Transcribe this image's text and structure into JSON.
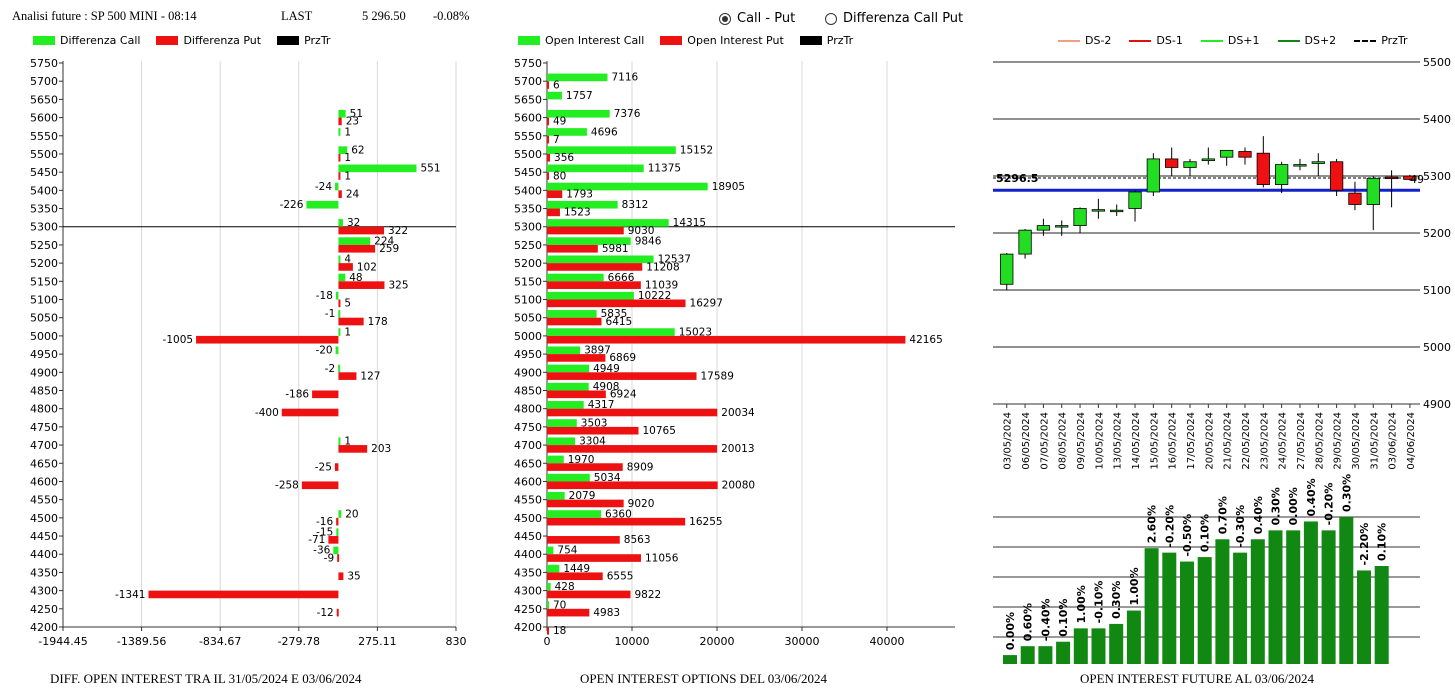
{
  "header": {
    "title": "Analisi future : SP 500 MINI - 08:14",
    "last_label": "LAST",
    "last_value": "5 296.50",
    "change": "-0.08%"
  },
  "options": {
    "radio1": "Call - Put",
    "radio2": "Differenza Call Put",
    "selected": "radio1"
  },
  "legends": {
    "left": [
      {
        "label": "Differenza Call",
        "color": "#22ee22"
      },
      {
        "label": "Differenza Put",
        "color": "#ee1111"
      },
      {
        "label": "PrzTr",
        "color": "#000000"
      }
    ],
    "middle": [
      {
        "label": "Open Interest Call",
        "color": "#22ee22"
      },
      {
        "label": "Open Interest Put",
        "color": "#ee1111"
      },
      {
        "label": "PrzTr",
        "color": "#000000"
      }
    ],
    "right": [
      {
        "label": "DS-2",
        "color": "#f0a080",
        "style": "solid"
      },
      {
        "label": "DS-1",
        "color": "#dd1111",
        "style": "solid"
      },
      {
        "label": "DS+1",
        "color": "#22ee22",
        "style": "solid"
      },
      {
        "label": "DS+2",
        "color": "#118811",
        "style": "solid"
      },
      {
        "label": "PrzTr",
        "color": "#000000",
        "style": "dashed"
      }
    ]
  },
  "captions": {
    "left": "DIFF. OPEN INTEREST TRA IL 31/05/2024 E 03/06/2024",
    "middle": "OPEN INTEREST OPTIONS DEL 03/06/2024",
    "right": "OPEN INTEREST FUTURE AL 03/06/2024"
  },
  "chart_data": [
    {
      "type": "bar",
      "orientation": "horizontal",
      "strikes": [
        5750,
        5700,
        5650,
        5600,
        5550,
        5500,
        5450,
        5400,
        5350,
        5300,
        5250,
        5200,
        5150,
        5100,
        5050,
        5000,
        4950,
        4900,
        4850,
        4800,
        4750,
        4700,
        4650,
        4600,
        4550,
        4500,
        4450,
        4400,
        4350,
        4300,
        4250,
        4200
      ],
      "series": [
        {
          "name": "Differenza Call",
          "color": "#22ee22",
          "values": [
            null,
            null,
            null,
            51,
            1,
            62,
            551,
            -24,
            -226,
            32,
            224,
            4,
            48,
            -18,
            -1,
            1,
            -20,
            -2,
            null,
            null,
            null,
            1,
            null,
            null,
            null,
            20,
            -15,
            -36,
            null,
            null,
            null,
            null
          ]
        },
        {
          "name": "Differenza Put",
          "color": "#ee1111",
          "values": [
            null,
            null,
            null,
            23,
            null,
            1,
            1,
            24,
            null,
            322,
            259,
            102,
            325,
            5,
            178,
            -1005,
            null,
            127,
            -186,
            -400,
            null,
            203,
            -25,
            -258,
            null,
            -16,
            -71,
            -9,
            35,
            -1341,
            -12,
            null
          ]
        }
      ],
      "x_ticks": [
        "-1944.45",
        "-1389.56",
        "-834.67",
        "-279.78",
        "275.11",
        "830"
      ],
      "xlim": [
        -1944.45,
        830
      ],
      "price_line": 5300
    },
    {
      "type": "bar",
      "orientation": "horizontal",
      "strikes": [
        5750,
        5700,
        5650,
        5600,
        5550,
        5500,
        5450,
        5400,
        5350,
        5300,
        5250,
        5200,
        5150,
        5100,
        5050,
        5000,
        4950,
        4900,
        4850,
        4800,
        4750,
        4700,
        4650,
        4600,
        4550,
        4500,
        4450,
        4400,
        4350,
        4300,
        4250,
        4200
      ],
      "series": [
        {
          "name": "Open Interest Call",
          "color": "#22ee22",
          "values": [
            null,
            7116,
            1757,
            7376,
            4696,
            15152,
            11375,
            18905,
            8312,
            14315,
            9846,
            12537,
            6666,
            10222,
            5835,
            15023,
            3897,
            4949,
            4908,
            4317,
            3503,
            3304,
            1970,
            5034,
            2079,
            6360,
            null,
            754,
            1449,
            428,
            70,
            null
          ]
        },
        {
          "name": "Open Interest Put",
          "color": "#ee1111",
          "values": [
            null,
            6,
            null,
            49,
            7,
            356,
            80,
            1793,
            1523,
            9030,
            5981,
            11208,
            11039,
            16297,
            6415,
            42165,
            6869,
            17589,
            6924,
            20034,
            10765,
            20013,
            8909,
            20080,
            9020,
            16255,
            8563,
            11056,
            6555,
            9822,
            4983,
            18
          ]
        }
      ],
      "x_ticks": [
        "0",
        "10000",
        "20000",
        "30000",
        "40000"
      ],
      "xlim": [
        0,
        48000
      ],
      "price_line": 5300
    },
    {
      "type": "candlestick",
      "dates": [
        "03/05/2024",
        "06/05/2024",
        "07/05/2024",
        "08/05/2024",
        "09/05/2024",
        "10/05/2024",
        "13/05/2024",
        "14/05/2024",
        "15/05/2024",
        "16/05/2024",
        "17/05/2024",
        "20/05/2024",
        "21/05/2024",
        "22/05/2024",
        "23/05/2024",
        "24/05/2024",
        "27/05/2024",
        "28/05/2024",
        "29/05/2024",
        "30/05/2024",
        "31/05/2024",
        "03/06/2024",
        "04/06/2024"
      ],
      "ohlc": [
        [
          5110,
          5165,
          5100,
          5163
        ],
        [
          5163,
          5207,
          5155,
          5205
        ],
        [
          5205,
          5225,
          5195,
          5213
        ],
        [
          5213,
          5222,
          5195,
          5213
        ],
        [
          5213,
          5245,
          5200,
          5243
        ],
        [
          5241,
          5260,
          5225,
          5241
        ],
        [
          5240,
          5250,
          5230,
          5240
        ],
        [
          5243,
          5275,
          5220,
          5272
        ],
        [
          5272,
          5340,
          5265,
          5330
        ],
        [
          5330,
          5350,
          5300,
          5315
        ],
        [
          5315,
          5330,
          5300,
          5325
        ],
        [
          5327,
          5350,
          5320,
          5330
        ],
        [
          5333,
          5345,
          5318,
          5345
        ],
        [
          5343,
          5350,
          5320,
          5333
        ],
        [
          5340,
          5370,
          5280,
          5285
        ],
        [
          5285,
          5325,
          5270,
          5320
        ],
        [
          5320,
          5330,
          5310,
          5320
        ],
        [
          5322,
          5340,
          5300,
          5325
        ],
        [
          5325,
          5330,
          5265,
          5275
        ],
        [
          5270,
          5290,
          5240,
          5250
        ],
        [
          5250,
          5300,
          5205,
          5296
        ],
        [
          5298,
          5310,
          5245,
          5297
        ],
        [
          5300,
          5302,
          5292,
          5294
        ]
      ],
      "y_ticks": [
        "5500",
        "5400",
        "5300",
        "5200",
        "5100",
        "5000",
        "4900"
      ],
      "ylim": [
        4900,
        5500
      ],
      "price_label": "5296.5",
      "price": 5296.5,
      "support_line": 5275,
      "end_label": "49"
    },
    {
      "type": "bar",
      "values": [
        1,
        2,
        2,
        2.5,
        4,
        4,
        4.5,
        6,
        13,
        12.5,
        11.5,
        12,
        14,
        12.5,
        14,
        15,
        15,
        16,
        15,
        16.5,
        10.5,
        11
      ],
      "labels": [
        "0.00%",
        "0.60%",
        "-0.40%",
        "0.10%",
        "1.00%",
        "-0.10%",
        "0.30%",
        "1.00%",
        "2.60%",
        "-0.20%",
        "-0.50%",
        "0.10%",
        "0.70%",
        "-0.30%",
        "0.40%",
        "0.30%",
        "0.00%",
        "0.40%",
        "-0.20%",
        "0.30%",
        "-2.20%",
        "0.10%"
      ],
      "ylim": [
        0,
        16.5
      ],
      "color": "#118811"
    }
  ]
}
